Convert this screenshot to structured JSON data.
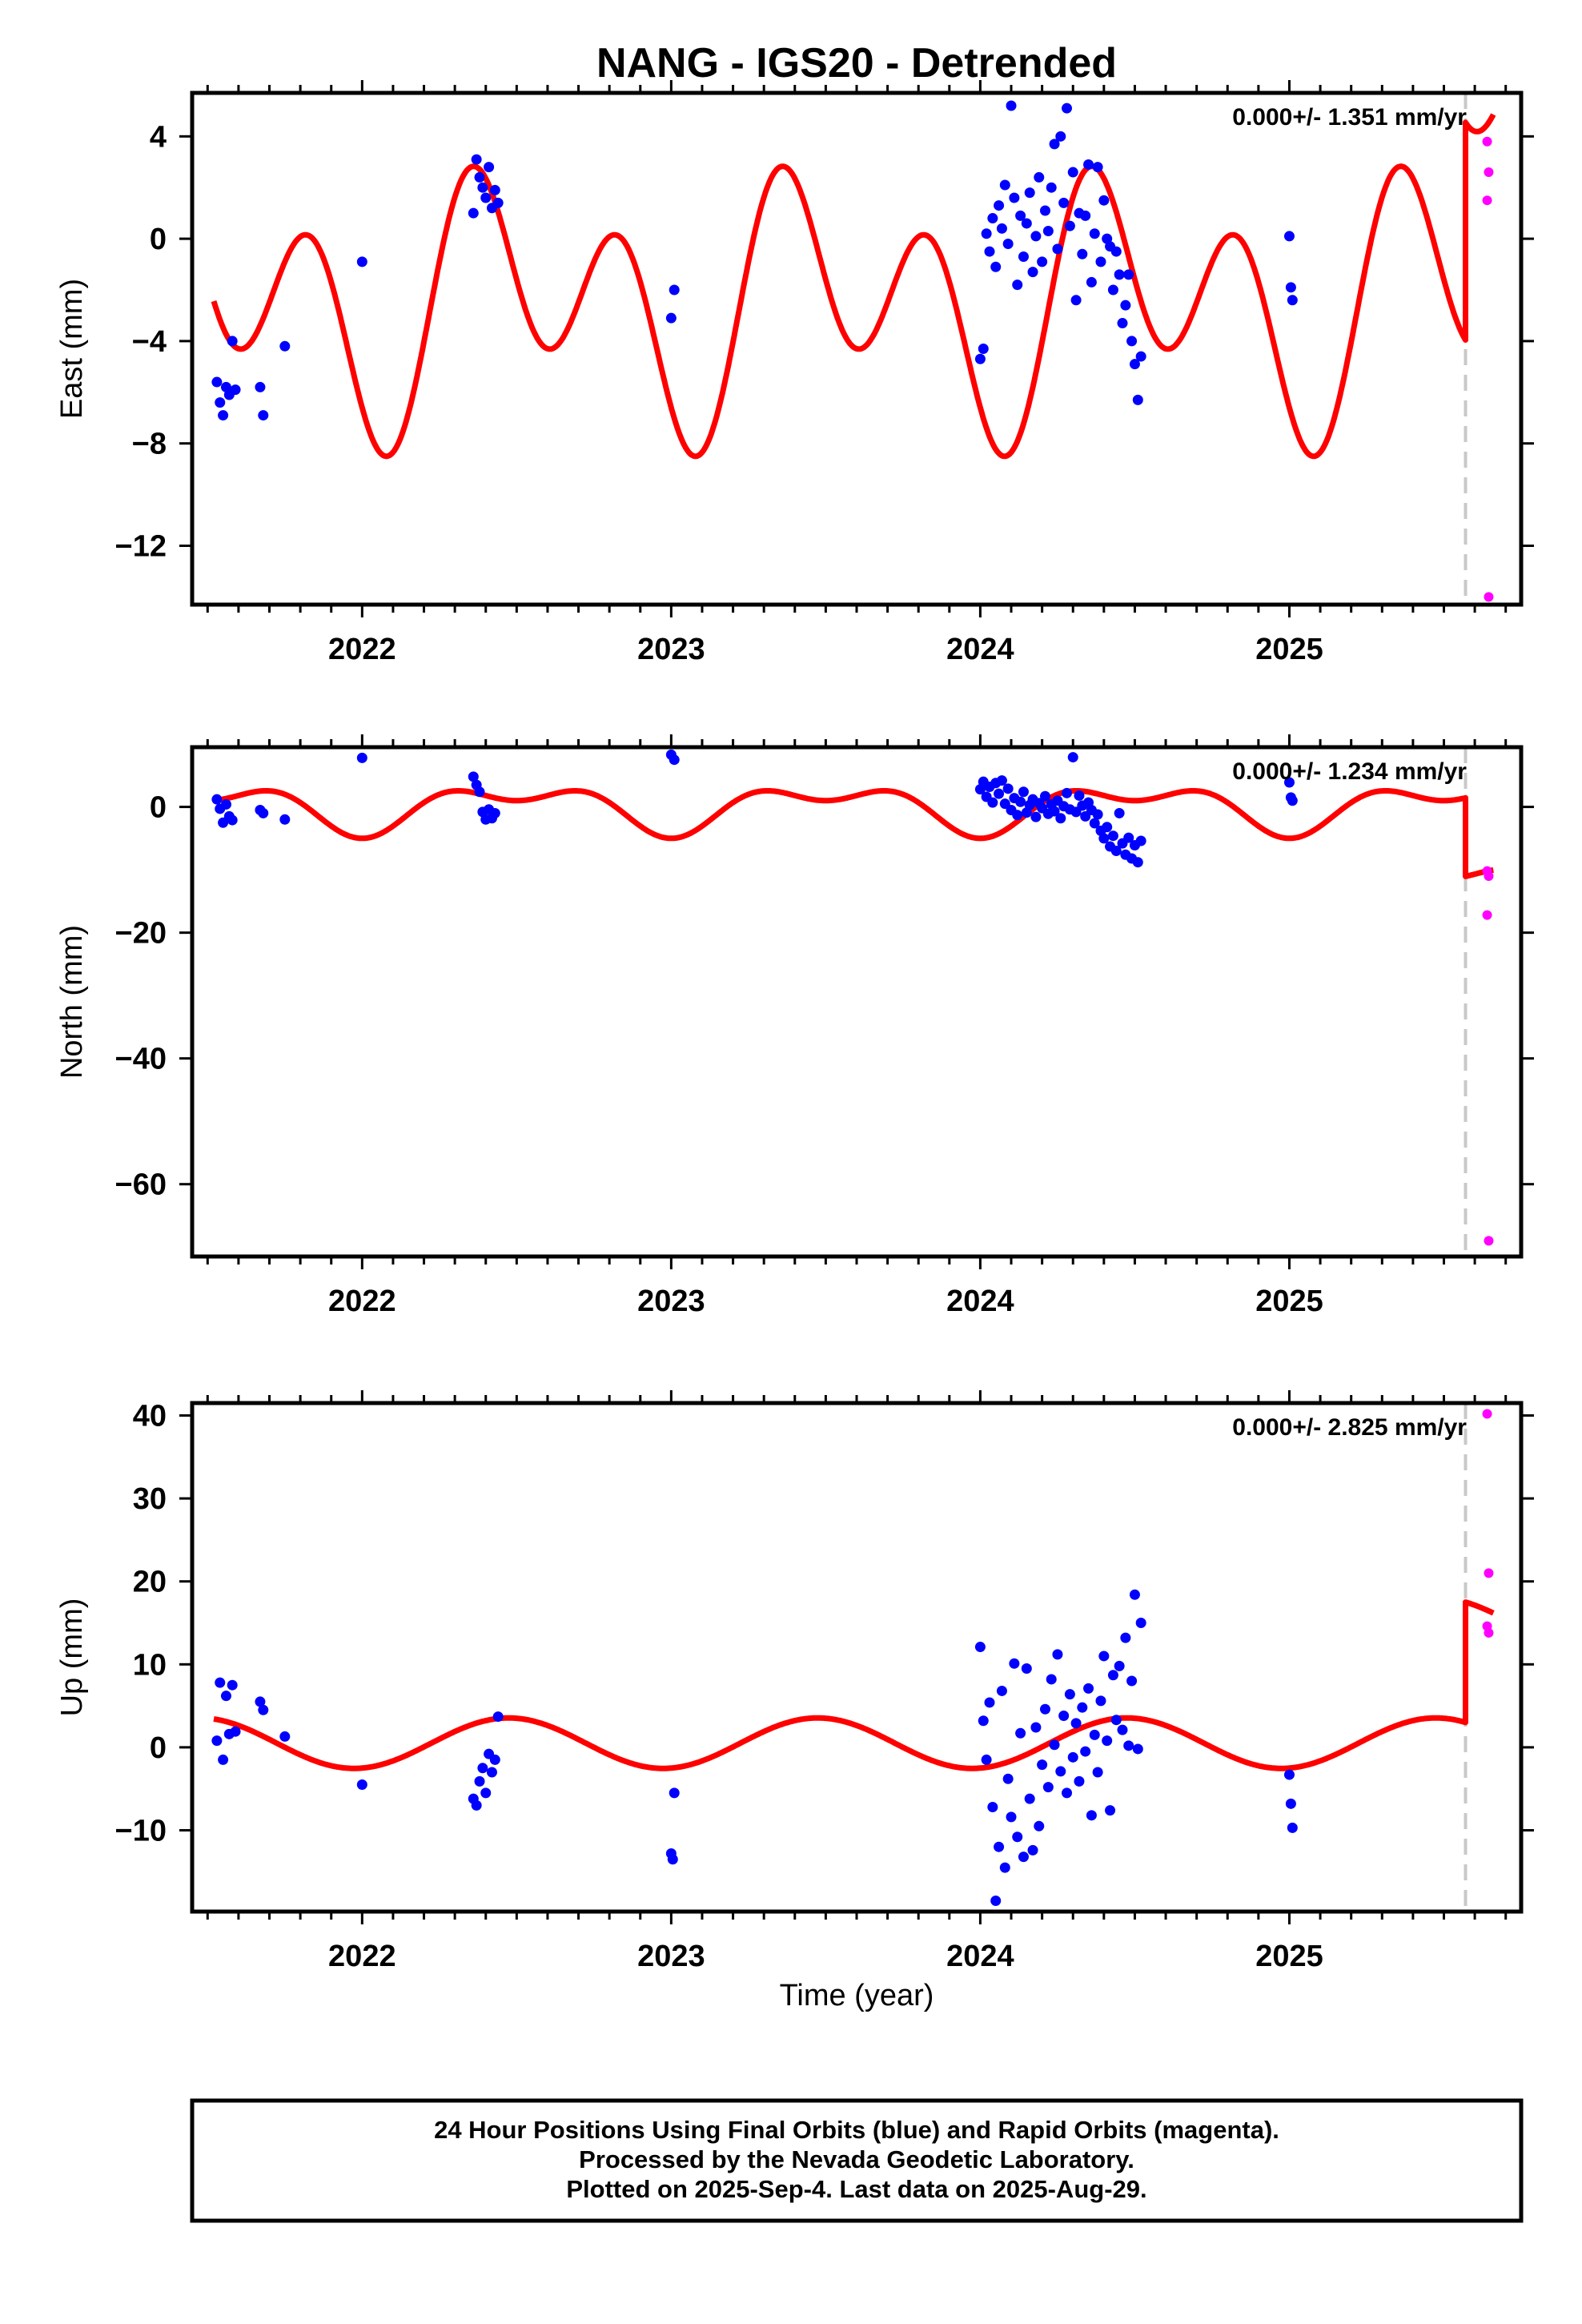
{
  "title": "NANG - IGS20 - Detrended",
  "xlabel": "Time (year)",
  "colors": {
    "final": "#0000ff",
    "rapid": "#ff00ff",
    "model": "#ff0000",
    "marker": "#c8c8c8"
  },
  "footer": {
    "line1": "24 Hour Positions Using Final Orbits (blue) and Rapid Orbits (magenta).",
    "line2": "Processed by the Nevada Geodetic Laboratory.",
    "line3": "Plotted on 2025-Sep-4. Last data on 2025-Aug-29."
  },
  "chart_data": [
    {
      "type": "scatter",
      "name": "east",
      "ylabel": "East (mm)",
      "rate": "0.000+/- 1.351 mm/yr",
      "xlim": [
        2021.45,
        2025.75
      ],
      "ylim": [
        -14.3,
        5.7
      ],
      "xticks": [
        2022,
        2023,
        2024,
        2025
      ],
      "yticks": [
        4,
        0,
        -4,
        -8,
        -12
      ],
      "equipment_change": 2025.57,
      "model": {
        "offset": 0.0,
        "ann_s": 0.0,
        "ann_c": -2.5,
        "semi_s": -3.5,
        "semi_c": -1.6,
        "mean": -2.5,
        "step_time": 2025.57,
        "step": 8.5,
        "x_start": 2021.52,
        "x_end": 2025.66
      },
      "final_points": [
        [
          2021.53,
          -5.6
        ],
        [
          2021.54,
          -6.4
        ],
        [
          2021.55,
          -6.9
        ],
        [
          2021.56,
          -5.8
        ],
        [
          2021.57,
          -6.1
        ],
        [
          2021.58,
          -4.0
        ],
        [
          2021.59,
          -5.9
        ],
        [
          2021.67,
          -5.8
        ],
        [
          2021.68,
          -6.9
        ],
        [
          2021.75,
          -4.2
        ],
        [
          2022.0,
          -0.9
        ],
        [
          2022.36,
          1.0
        ],
        [
          2022.37,
          3.1
        ],
        [
          2022.38,
          2.4
        ],
        [
          2022.39,
          2.0
        ],
        [
          2022.4,
          1.6
        ],
        [
          2022.41,
          2.8
        ],
        [
          2022.42,
          1.2
        ],
        [
          2022.43,
          1.9
        ],
        [
          2022.44,
          1.4
        ],
        [
          2023.0,
          -3.1
        ],
        [
          2023.01,
          -2.0
        ],
        [
          2024.0,
          -4.7
        ],
        [
          2024.01,
          -4.3
        ],
        [
          2024.02,
          0.2
        ],
        [
          2024.03,
          -0.5
        ],
        [
          2024.04,
          0.8
        ],
        [
          2024.05,
          -1.1
        ],
        [
          2024.06,
          1.3
        ],
        [
          2024.07,
          0.4
        ],
        [
          2024.08,
          2.1
        ],
        [
          2024.09,
          -0.2
        ],
        [
          2024.1,
          5.2
        ],
        [
          2024.11,
          1.6
        ],
        [
          2024.12,
          -1.8
        ],
        [
          2024.13,
          0.9
        ],
        [
          2024.14,
          -0.7
        ],
        [
          2024.15,
          0.6
        ],
        [
          2024.16,
          1.8
        ],
        [
          2024.17,
          -1.3
        ],
        [
          2024.18,
          0.1
        ],
        [
          2024.19,
          2.4
        ],
        [
          2024.2,
          -0.9
        ],
        [
          2024.21,
          1.1
        ],
        [
          2024.22,
          0.3
        ],
        [
          2024.23,
          2.0
        ],
        [
          2024.24,
          3.7
        ],
        [
          2024.25,
          -0.4
        ],
        [
          2024.26,
          4.0
        ],
        [
          2024.27,
          1.4
        ],
        [
          2024.28,
          5.1
        ],
        [
          2024.29,
          0.5
        ],
        [
          2024.3,
          2.6
        ],
        [
          2024.31,
          -2.4
        ],
        [
          2024.32,
          1.0
        ],
        [
          2024.33,
          -0.6
        ],
        [
          2024.34,
          0.9
        ],
        [
          2024.35,
          2.9
        ],
        [
          2024.36,
          -1.7
        ],
        [
          2024.37,
          0.2
        ],
        [
          2024.38,
          2.8
        ],
        [
          2024.39,
          -0.9
        ],
        [
          2024.4,
          1.5
        ],
        [
          2024.41,
          0.0
        ],
        [
          2024.42,
          -0.3
        ],
        [
          2024.43,
          -2.0
        ],
        [
          2024.44,
          -0.5
        ],
        [
          2024.45,
          -1.4
        ],
        [
          2024.46,
          -3.3
        ],
        [
          2024.47,
          -2.6
        ],
        [
          2024.48,
          -1.4
        ],
        [
          2024.49,
          -4.0
        ],
        [
          2024.5,
          -4.9
        ],
        [
          2024.51,
          -6.3
        ],
        [
          2024.52,
          -4.6
        ],
        [
          2025.0,
          0.1
        ],
        [
          2025.005,
          -1.9
        ],
        [
          2025.01,
          -2.4
        ]
      ],
      "rapid_points": [
        [
          2025.64,
          3.8
        ],
        [
          2025.645,
          2.6
        ],
        [
          2025.64,
          1.5
        ],
        [
          2025.645,
          -14.0
        ]
      ]
    },
    {
      "type": "scatter",
      "name": "north",
      "ylabel": "North (mm)",
      "rate": "0.000+/- 1.234 mm/yr",
      "xlim": [
        2021.45,
        2025.75
      ],
      "ylim": [
        -71.5,
        9.5
      ],
      "xticks": [
        2022,
        2023,
        2024,
        2025
      ],
      "yticks": [
        0,
        -20,
        -40,
        -60
      ],
      "equipment_change": 2025.57,
      "model": {
        "offset": 0.0,
        "ann_s": 0.0,
        "ann_c": -3.0,
        "semi_s": 0.0,
        "semi_c": -2.0,
        "mean": 0.0,
        "step_time": 2025.57,
        "step": -12.5,
        "x_start": 2021.52,
        "x_end": 2025.66
      },
      "final_points": [
        [
          2021.53,
          1.2
        ],
        [
          2021.54,
          -0.3
        ],
        [
          2021.55,
          -2.5
        ],
        [
          2021.56,
          0.4
        ],
        [
          2021.57,
          -1.5
        ],
        [
          2021.58,
          -2.1
        ],
        [
          2021.67,
          -0.5
        ],
        [
          2021.68,
          -1.0
        ],
        [
          2021.75,
          -2.0
        ],
        [
          2022.0,
          7.8
        ],
        [
          2022.36,
          4.8
        ],
        [
          2022.37,
          3.5
        ],
        [
          2022.38,
          2.4
        ],
        [
          2022.39,
          -0.8
        ],
        [
          2022.4,
          -2.0
        ],
        [
          2022.41,
          -0.4
        ],
        [
          2022.42,
          -1.8
        ],
        [
          2022.43,
          -1.0
        ],
        [
          2023.0,
          8.3
        ],
        [
          2023.01,
          7.5
        ],
        [
          2024.0,
          2.8
        ],
        [
          2024.01,
          4.0
        ],
        [
          2024.02,
          1.6
        ],
        [
          2024.03,
          3.2
        ],
        [
          2024.04,
          0.7
        ],
        [
          2024.05,
          3.8
        ],
        [
          2024.06,
          2.1
        ],
        [
          2024.07,
          4.2
        ],
        [
          2024.08,
          0.5
        ],
        [
          2024.09,
          2.9
        ],
        [
          2024.1,
          -0.5
        ],
        [
          2024.11,
          1.4
        ],
        [
          2024.12,
          -1.3
        ],
        [
          2024.13,
          0.8
        ],
        [
          2024.14,
          2.4
        ],
        [
          2024.15,
          -0.9
        ],
        [
          2024.16,
          0.3
        ],
        [
          2024.17,
          1.2
        ],
        [
          2024.18,
          -1.6
        ],
        [
          2024.19,
          0.6
        ],
        [
          2024.2,
          -0.2
        ],
        [
          2024.21,
          1.7
        ],
        [
          2024.22,
          -1.1
        ],
        [
          2024.23,
          0.4
        ],
        [
          2024.24,
          -0.7
        ],
        [
          2024.25,
          1.0
        ],
        [
          2024.26,
          -1.8
        ],
        [
          2024.27,
          0.1
        ],
        [
          2024.28,
          2.2
        ],
        [
          2024.29,
          -0.4
        ],
        [
          2024.3,
          7.9
        ],
        [
          2024.31,
          -0.8
        ],
        [
          2024.32,
          1.8
        ],
        [
          2024.33,
          0.2
        ],
        [
          2024.34,
          -1.5
        ],
        [
          2024.35,
          0.7
        ],
        [
          2024.36,
          -0.5
        ],
        [
          2024.37,
          -2.6
        ],
        [
          2024.38,
          -1.2
        ],
        [
          2024.39,
          -3.8
        ],
        [
          2024.4,
          -5.0
        ],
        [
          2024.41,
          -3.2
        ],
        [
          2024.42,
          -6.3
        ],
        [
          2024.43,
          -4.6
        ],
        [
          2024.44,
          -7.0
        ],
        [
          2024.45,
          -1.0
        ],
        [
          2024.46,
          -5.8
        ],
        [
          2024.47,
          -7.6
        ],
        [
          2024.48,
          -4.9
        ],
        [
          2024.49,
          -8.2
        ],
        [
          2024.5,
          -6.1
        ],
        [
          2024.51,
          -8.8
        ],
        [
          2024.52,
          -5.4
        ],
        [
          2025.0,
          3.9
        ],
        [
          2025.005,
          1.5
        ],
        [
          2025.01,
          1.0
        ]
      ],
      "rapid_points": [
        [
          2025.64,
          -10.2
        ],
        [
          2025.645,
          -11.0
        ],
        [
          2025.64,
          -17.2
        ],
        [
          2025.645,
          -69.0
        ]
      ]
    },
    {
      "type": "scatter",
      "name": "up",
      "ylabel": "Up (mm)",
      "rate": "0.000+/- 2.825 mm/yr",
      "xlim": [
        2021.45,
        2025.75
      ],
      "ylim": [
        -19.8,
        41.5
      ],
      "xticks": [
        2022,
        2023,
        2024,
        2025
      ],
      "yticks": [
        40,
        30,
        20,
        10,
        0,
        -10
      ],
      "equipment_change": 2025.57,
      "model": {
        "offset": 0.5,
        "ann_s": 0.5,
        "ann_c": -3.0,
        "semi_s": 0.0,
        "semi_c": 0.0,
        "mean": 0.5,
        "step_time": 2025.57,
        "step": 14.5,
        "x_start": 2021.52,
        "x_end": 2025.66
      },
      "final_points": [
        [
          2021.53,
          0.8
        ],
        [
          2021.54,
          7.8
        ],
        [
          2021.55,
          -1.5
        ],
        [
          2021.56,
          6.2
        ],
        [
          2021.57,
          1.6
        ],
        [
          2021.58,
          7.5
        ],
        [
          2021.59,
          1.9
        ],
        [
          2021.67,
          5.5
        ],
        [
          2021.68,
          4.5
        ],
        [
          2021.75,
          1.3
        ],
        [
          2022.0,
          -4.5
        ],
        [
          2022.36,
          -6.2
        ],
        [
          2022.37,
          -7.0
        ],
        [
          2022.38,
          -4.1
        ],
        [
          2022.39,
          -2.5
        ],
        [
          2022.4,
          -5.5
        ],
        [
          2022.41,
          -0.8
        ],
        [
          2022.42,
          -3.0
        ],
        [
          2022.43,
          -1.5
        ],
        [
          2022.44,
          3.7
        ],
        [
          2023.0,
          -12.8
        ],
        [
          2023.005,
          -13.5
        ],
        [
          2023.01,
          -5.5
        ],
        [
          2024.0,
          12.1
        ],
        [
          2024.01,
          3.2
        ],
        [
          2024.02,
          -1.5
        ],
        [
          2024.03,
          5.4
        ],
        [
          2024.04,
          -7.2
        ],
        [
          2024.05,
          -18.5
        ],
        [
          2024.06,
          -12.0
        ],
        [
          2024.07,
          6.8
        ],
        [
          2024.08,
          -14.5
        ],
        [
          2024.09,
          -3.8
        ],
        [
          2024.1,
          -8.4
        ],
        [
          2024.11,
          10.1
        ],
        [
          2024.12,
          -10.8
        ],
        [
          2024.13,
          1.7
        ],
        [
          2024.14,
          -13.2
        ],
        [
          2024.15,
          9.5
        ],
        [
          2024.16,
          -6.2
        ],
        [
          2024.17,
          -12.4
        ],
        [
          2024.18,
          2.4
        ],
        [
          2024.19,
          -9.5
        ],
        [
          2024.2,
          -2.1
        ],
        [
          2024.21,
          4.6
        ],
        [
          2024.22,
          -4.8
        ],
        [
          2024.23,
          8.2
        ],
        [
          2024.24,
          0.3
        ],
        [
          2024.25,
          11.2
        ],
        [
          2024.26,
          -2.9
        ],
        [
          2024.27,
          3.8
        ],
        [
          2024.28,
          -5.5
        ],
        [
          2024.29,
          6.4
        ],
        [
          2024.3,
          -1.2
        ],
        [
          2024.31,
          2.9
        ],
        [
          2024.32,
          -4.1
        ],
        [
          2024.33,
          4.8
        ],
        [
          2024.34,
          -0.5
        ],
        [
          2024.35,
          7.1
        ],
        [
          2024.36,
          -8.2
        ],
        [
          2024.37,
          1.5
        ],
        [
          2024.38,
          -3.0
        ],
        [
          2024.39,
          5.6
        ],
        [
          2024.4,
          11.0
        ],
        [
          2024.41,
          0.8
        ],
        [
          2024.42,
          -7.6
        ],
        [
          2024.43,
          8.7
        ],
        [
          2024.44,
          3.3
        ],
        [
          2024.45,
          9.8
        ],
        [
          2024.46,
          2.1
        ],
        [
          2024.47,
          13.2
        ],
        [
          2024.48,
          0.2
        ],
        [
          2024.49,
          8.0
        ],
        [
          2024.5,
          18.4
        ],
        [
          2024.51,
          -0.2
        ],
        [
          2024.52,
          15.0
        ],
        [
          2025.0,
          -3.3
        ],
        [
          2025.005,
          -6.8
        ],
        [
          2025.01,
          -9.7
        ]
      ],
      "rapid_points": [
        [
          2025.64,
          40.2
        ],
        [
          2025.645,
          21.0
        ],
        [
          2025.64,
          14.6
        ],
        [
          2025.645,
          13.8
        ]
      ]
    }
  ]
}
